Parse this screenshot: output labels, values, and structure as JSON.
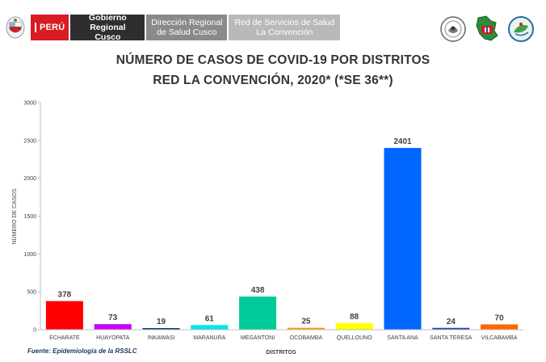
{
  "header": {
    "peru": "PERÚ",
    "gobierno_line1": "Gobierno Regional",
    "gobierno_line2": "Cusco",
    "direccion_line1": "Dirección Regional",
    "direccion_line2": "de Salud Cusco",
    "red_line1": "Red de Servicios de Salud",
    "red_line2": "La Convención"
  },
  "title_line1": "NÚMERO DE CASOS DE COVID-19 POR DISTRITOS",
  "title_line2": "RED LA CONVENCIÓN, 2020* (*SE 36**)",
  "footer_note": "Fuente: Epidemiología de la RSSLC",
  "chart_data": {
    "type": "bar",
    "xlabel": "DISTRITOS",
    "ylabel": "NÚMERO DE CASOS",
    "ylim": [
      0,
      3000
    ],
    "yticks": [
      0,
      500,
      1000,
      1500,
      2000,
      2500,
      3000
    ],
    "grid": false,
    "categories": [
      "ECHARATE",
      "HUAYOPATA",
      "INKAWASI",
      "MARANURA",
      "MEGANTONI",
      "OCOBAMBA",
      "QUELLOUNO",
      "SANTA ANA",
      "SANTA TERESA",
      "VILCABAMBA"
    ],
    "values": [
      378,
      73,
      19,
      61,
      438,
      25,
      88,
      2401,
      24,
      70
    ],
    "colors": [
      "#ff0000",
      "#cc00ff",
      "#1f3864",
      "#00e5f5",
      "#00cc99",
      "#ff9900",
      "#ffff00",
      "#0066ff",
      "#1f4e99",
      "#ff6600"
    ]
  }
}
